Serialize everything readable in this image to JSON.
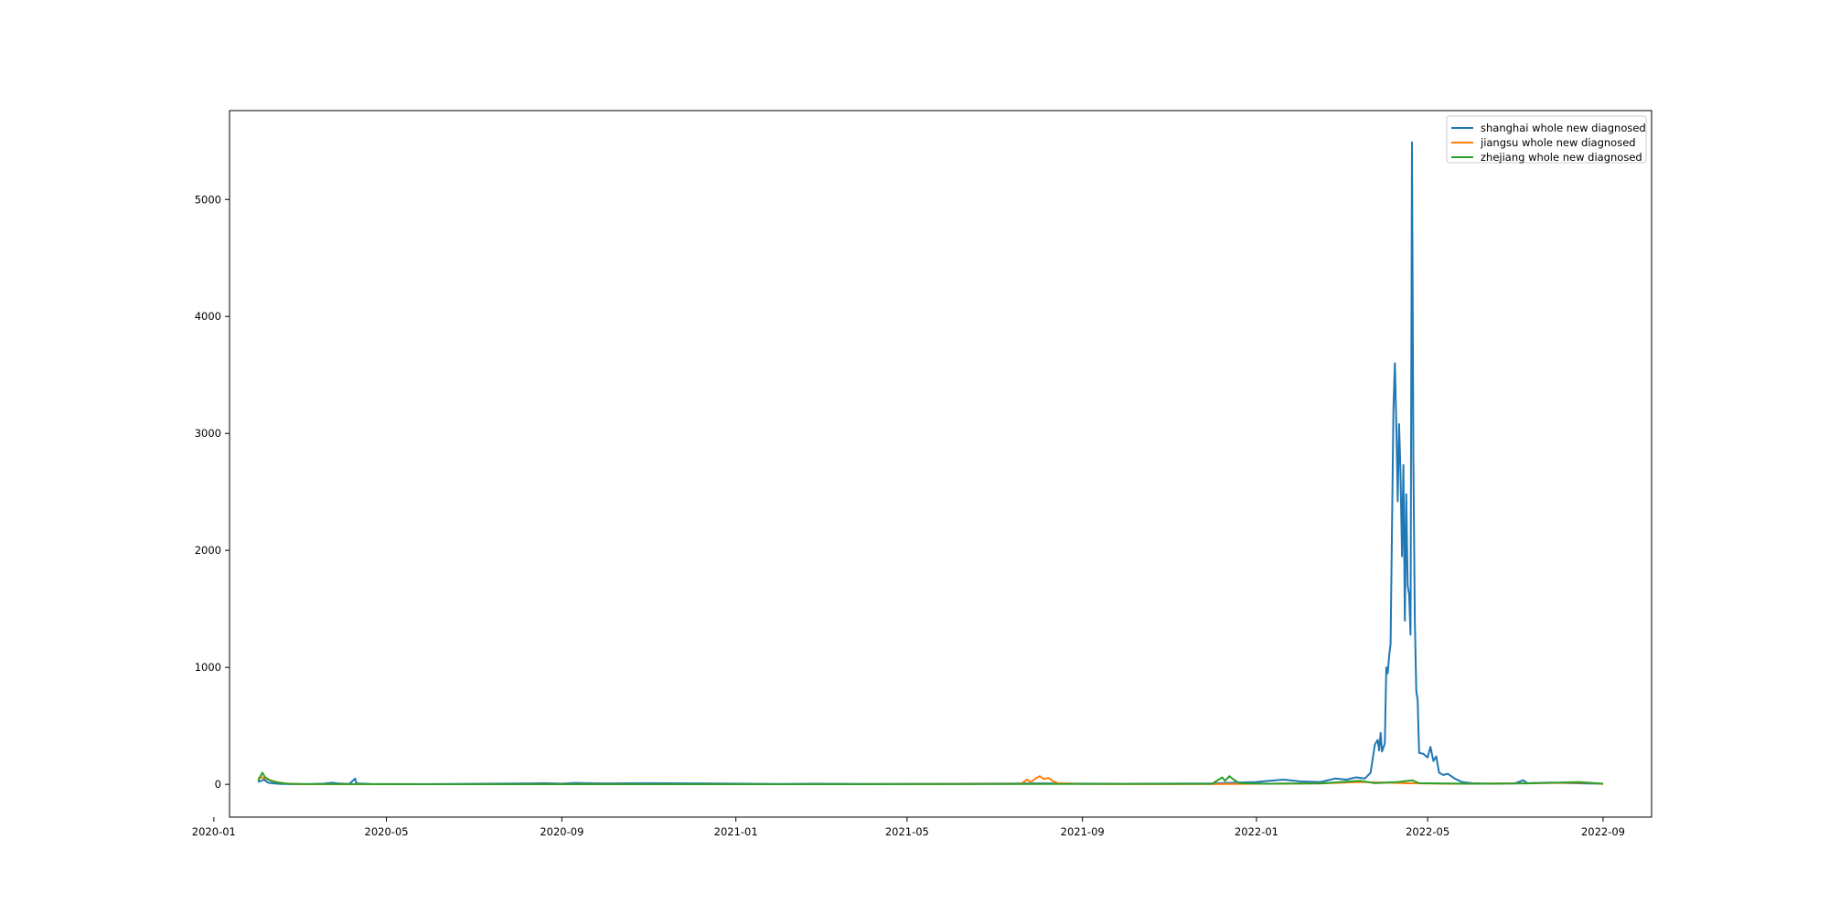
{
  "chart_data": {
    "type": "line",
    "title": "",
    "xlabel": "",
    "ylabel": "",
    "xlim": [
      "2020-01-12",
      "2022-10-05"
    ],
    "ylim": [
      -280,
      5760
    ],
    "x_ticks": [
      "2020-01",
      "2020-05",
      "2020-09",
      "2021-01",
      "2021-05",
      "2021-09",
      "2022-01",
      "2022-05",
      "2022-09"
    ],
    "y_ticks": [
      0,
      1000,
      2000,
      3000,
      4000,
      5000
    ],
    "grid": false,
    "legend_position": "top-right",
    "series": [
      {
        "name": "shanghai whole new diagnosed",
        "color": "#1f77b4",
        "points": [
          [
            "2020-02-01",
            20
          ],
          [
            "2020-02-05",
            40
          ],
          [
            "2020-02-08",
            15
          ],
          [
            "2020-02-12",
            8
          ],
          [
            "2020-02-18",
            3
          ],
          [
            "2020-02-25",
            2
          ],
          [
            "2020-03-05",
            1
          ],
          [
            "2020-03-18",
            6
          ],
          [
            "2020-03-24",
            14
          ],
          [
            "2020-03-28",
            8
          ],
          [
            "2020-04-05",
            4
          ],
          [
            "2020-04-09",
            50
          ],
          [
            "2020-04-10",
            8
          ],
          [
            "2020-04-20",
            3
          ],
          [
            "2020-06-01",
            2
          ],
          [
            "2020-08-10",
            8
          ],
          [
            "2020-08-20",
            10
          ],
          [
            "2020-09-01",
            6
          ],
          [
            "2020-09-10",
            12
          ],
          [
            "2020-10-01",
            8
          ],
          [
            "2020-11-01",
            10
          ],
          [
            "2020-12-01",
            8
          ],
          [
            "2021-01-01",
            6
          ],
          [
            "2021-02-01",
            4
          ],
          [
            "2021-03-01",
            5
          ],
          [
            "2021-04-01",
            3
          ],
          [
            "2021-06-01",
            5
          ],
          [
            "2021-08-01",
            8
          ],
          [
            "2021-09-01",
            6
          ],
          [
            "2021-10-01",
            5
          ],
          [
            "2021-12-01",
            8
          ],
          [
            "2022-01-01",
            20
          ],
          [
            "2022-01-10",
            30
          ],
          [
            "2022-01-20",
            40
          ],
          [
            "2022-02-01",
            25
          ],
          [
            "2022-02-15",
            20
          ],
          [
            "2022-02-25",
            50
          ],
          [
            "2022-03-05",
            40
          ],
          [
            "2022-03-12",
            60
          ],
          [
            "2022-03-18",
            50
          ],
          [
            "2022-03-22",
            100
          ],
          [
            "2022-03-25",
            340
          ],
          [
            "2022-03-27",
            380
          ],
          [
            "2022-03-28",
            290
          ],
          [
            "2022-03-29",
            440
          ],
          [
            "2022-03-30",
            280
          ],
          [
            "2022-04-01",
            350
          ],
          [
            "2022-04-02",
            1000
          ],
          [
            "2022-04-03",
            950
          ],
          [
            "2022-04-04",
            1100
          ],
          [
            "2022-04-05",
            1200
          ],
          [
            "2022-04-07",
            3200
          ],
          [
            "2022-04-08",
            3600
          ],
          [
            "2022-04-09",
            3100
          ],
          [
            "2022-04-10",
            2420
          ],
          [
            "2022-04-11",
            3080
          ],
          [
            "2022-04-12",
            2650
          ],
          [
            "2022-04-13",
            1950
          ],
          [
            "2022-04-14",
            2730
          ],
          [
            "2022-04-15",
            1400
          ],
          [
            "2022-04-16",
            2480
          ],
          [
            "2022-04-17",
            1700
          ],
          [
            "2022-04-18",
            1620
          ],
          [
            "2022-04-19",
            1280
          ],
          [
            "2022-04-20",
            5490
          ],
          [
            "2022-04-21",
            2800
          ],
          [
            "2022-04-22",
            1400
          ],
          [
            "2022-04-23",
            800
          ],
          [
            "2022-04-24",
            720
          ],
          [
            "2022-04-25",
            270
          ],
          [
            "2022-04-28",
            260
          ],
          [
            "2022-05-01",
            230
          ],
          [
            "2022-05-03",
            320
          ],
          [
            "2022-05-05",
            200
          ],
          [
            "2022-05-07",
            240
          ],
          [
            "2022-05-09",
            100
          ],
          [
            "2022-05-12",
            80
          ],
          [
            "2022-05-15",
            90
          ],
          [
            "2022-05-20",
            50
          ],
          [
            "2022-05-25",
            20
          ],
          [
            "2022-06-01",
            10
          ],
          [
            "2022-06-15",
            5
          ],
          [
            "2022-07-01",
            8
          ],
          [
            "2022-07-07",
            35
          ],
          [
            "2022-07-10",
            10
          ],
          [
            "2022-07-25",
            15
          ],
          [
            "2022-08-10",
            10
          ],
          [
            "2022-09-01",
            5
          ]
        ]
      },
      {
        "name": "jiangsu whole new diagnosed",
        "color": "#ff7f0e",
        "points": [
          [
            "2020-02-01",
            55
          ],
          [
            "2020-02-04",
            60
          ],
          [
            "2020-02-08",
            40
          ],
          [
            "2020-02-14",
            20
          ],
          [
            "2020-02-20",
            8
          ],
          [
            "2020-03-01",
            2
          ],
          [
            "2020-05-01",
            1
          ],
          [
            "2020-09-01",
            2
          ],
          [
            "2021-01-01",
            1
          ],
          [
            "2021-05-01",
            2
          ],
          [
            "2021-07-20",
            5
          ],
          [
            "2021-07-24",
            40
          ],
          [
            "2021-07-27",
            20
          ],
          [
            "2021-07-30",
            50
          ],
          [
            "2021-08-02",
            70
          ],
          [
            "2021-08-05",
            45
          ],
          [
            "2021-08-08",
            55
          ],
          [
            "2021-08-11",
            30
          ],
          [
            "2021-08-15",
            10
          ],
          [
            "2021-09-01",
            3
          ],
          [
            "2021-12-01",
            2
          ],
          [
            "2022-02-15",
            8
          ],
          [
            "2022-03-15",
            20
          ],
          [
            "2022-04-01",
            15
          ],
          [
            "2022-04-15",
            10
          ],
          [
            "2022-05-15",
            5
          ],
          [
            "2022-07-15",
            10
          ],
          [
            "2022-08-20",
            15
          ],
          [
            "2022-09-01",
            3
          ]
        ]
      },
      {
        "name": "zhejiang whole new diagnosed",
        "color": "#2ca02c",
        "points": [
          [
            "2020-02-01",
            30
          ],
          [
            "2020-02-04",
            100
          ],
          [
            "2020-02-06",
            60
          ],
          [
            "2020-02-10",
            30
          ],
          [
            "2020-02-15",
            15
          ],
          [
            "2020-02-22",
            5
          ],
          [
            "2020-03-10",
            2
          ],
          [
            "2020-06-01",
            1
          ],
          [
            "2021-01-01",
            1
          ],
          [
            "2021-06-01",
            2
          ],
          [
            "2021-12-01",
            5
          ],
          [
            "2021-12-08",
            60
          ],
          [
            "2021-12-10",
            30
          ],
          [
            "2021-12-13",
            70
          ],
          [
            "2021-12-16",
            40
          ],
          [
            "2021-12-20",
            10
          ],
          [
            "2022-01-10",
            5
          ],
          [
            "2022-02-15",
            8
          ],
          [
            "2022-03-15",
            30
          ],
          [
            "2022-03-25",
            10
          ],
          [
            "2022-04-10",
            20
          ],
          [
            "2022-04-20",
            35
          ],
          [
            "2022-04-25",
            10
          ],
          [
            "2022-06-01",
            5
          ],
          [
            "2022-07-10",
            8
          ],
          [
            "2022-08-15",
            20
          ],
          [
            "2022-09-01",
            5
          ]
        ]
      }
    ]
  }
}
